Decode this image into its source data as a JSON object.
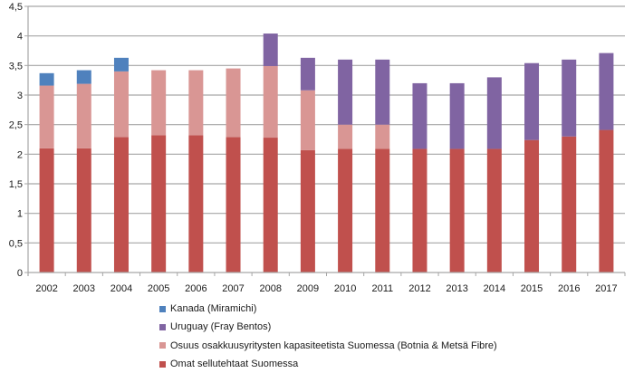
{
  "chart_data": {
    "type": "bar",
    "stacked": true,
    "title": "",
    "xlabel": "",
    "ylabel": "",
    "ylim": [
      0,
      4.5
    ],
    "yticks": [
      "0",
      "0,5",
      "1",
      "1,5",
      "2",
      "2,5",
      "3",
      "3,5",
      "4",
      "4,5"
    ],
    "ytick_values": [
      0,
      0.5,
      1,
      1.5,
      2,
      2.5,
      3,
      3.5,
      4,
      4.5
    ],
    "grid": true,
    "legend_position": "bottom",
    "categories": [
      "2002",
      "2003",
      "2004",
      "2005",
      "2006",
      "2007",
      "2008",
      "2009",
      "2010",
      "2011",
      "2012",
      "2013",
      "2014",
      "2015",
      "2016",
      "2017"
    ],
    "series": [
      {
        "name": "Omat sellutehtaat Suomessa",
        "color": "#c0504d",
        "values": [
          2.1,
          2.1,
          2.29,
          2.32,
          2.32,
          2.29,
          2.28,
          2.07,
          2.09,
          2.09,
          2.09,
          2.09,
          2.09,
          2.24,
          2.3,
          2.41
        ]
      },
      {
        "name": "Osuus osakkuusyritysten kapasiteetista Suomessa (Botnia & Metsä Fibre)",
        "color": "#d99694",
        "values": [
          1.06,
          1.09,
          1.11,
          1.1,
          1.1,
          1.16,
          1.21,
          1.01,
          0.41,
          0.41,
          0,
          0,
          0,
          0,
          0,
          0
        ]
      },
      {
        "name": "Uruguay (Fray Bentos)",
        "color": "#8064a2",
        "values": [
          0,
          0,
          0,
          0,
          0,
          0,
          0.55,
          0.55,
          1.1,
          1.1,
          1.11,
          1.11,
          1.21,
          1.3,
          1.3,
          1.3
        ]
      },
      {
        "name": "Kanada (Miramichi)",
        "color": "#4f81bd",
        "values": [
          0.21,
          0.23,
          0.23,
          0,
          0,
          0,
          0,
          0,
          0,
          0,
          0,
          0,
          0,
          0,
          0,
          0
        ]
      }
    ]
  },
  "legend": [
    {
      "label": "Kanada (Miramichi)",
      "color": "#4f81bd"
    },
    {
      "label": "Uruguay (Fray Bentos)",
      "color": "#8064a2"
    },
    {
      "label": "Osuus osakkuusyritysten kapasiteetista Suomessa (Botnia & Metsä Fibre)",
      "color": "#d99694"
    },
    {
      "label": "Omat sellutehtaat Suomessa",
      "color": "#c0504d"
    }
  ],
  "colors": {
    "grid": "#a6a6a6",
    "axis": "#a6a6a6"
  }
}
